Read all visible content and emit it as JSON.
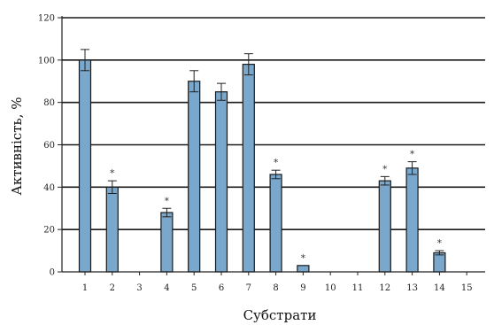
{
  "chart_data": {
    "type": "bar",
    "categories": [
      "1",
      "2",
      "3",
      "4",
      "5",
      "6",
      "7",
      "8",
      "9",
      "10",
      "11",
      "12",
      "13",
      "14",
      "15"
    ],
    "values": [
      100,
      40,
      0,
      28,
      90,
      85,
      98,
      46,
      3,
      0,
      0,
      43,
      49,
      9,
      0
    ],
    "errors": [
      5,
      3,
      0,
      2,
      5,
      4,
      5,
      2,
      0,
      0,
      0,
      2,
      3,
      1,
      0
    ],
    "significance": [
      "",
      "*",
      "",
      "*",
      "",
      "",
      "",
      "*",
      "*",
      "",
      "",
      "*",
      "*",
      "*",
      ""
    ],
    "xlabel": "Субстрати",
    "ylabel": "Активність, %",
    "ylim": [
      0,
      120
    ],
    "yticks": [
      0,
      20,
      40,
      60,
      80,
      100,
      120
    ],
    "grid": true,
    "bar_color": "#7aa7cc",
    "bar_edge_color": "#1a1a1a",
    "grid_color": "#1a1a1a"
  }
}
